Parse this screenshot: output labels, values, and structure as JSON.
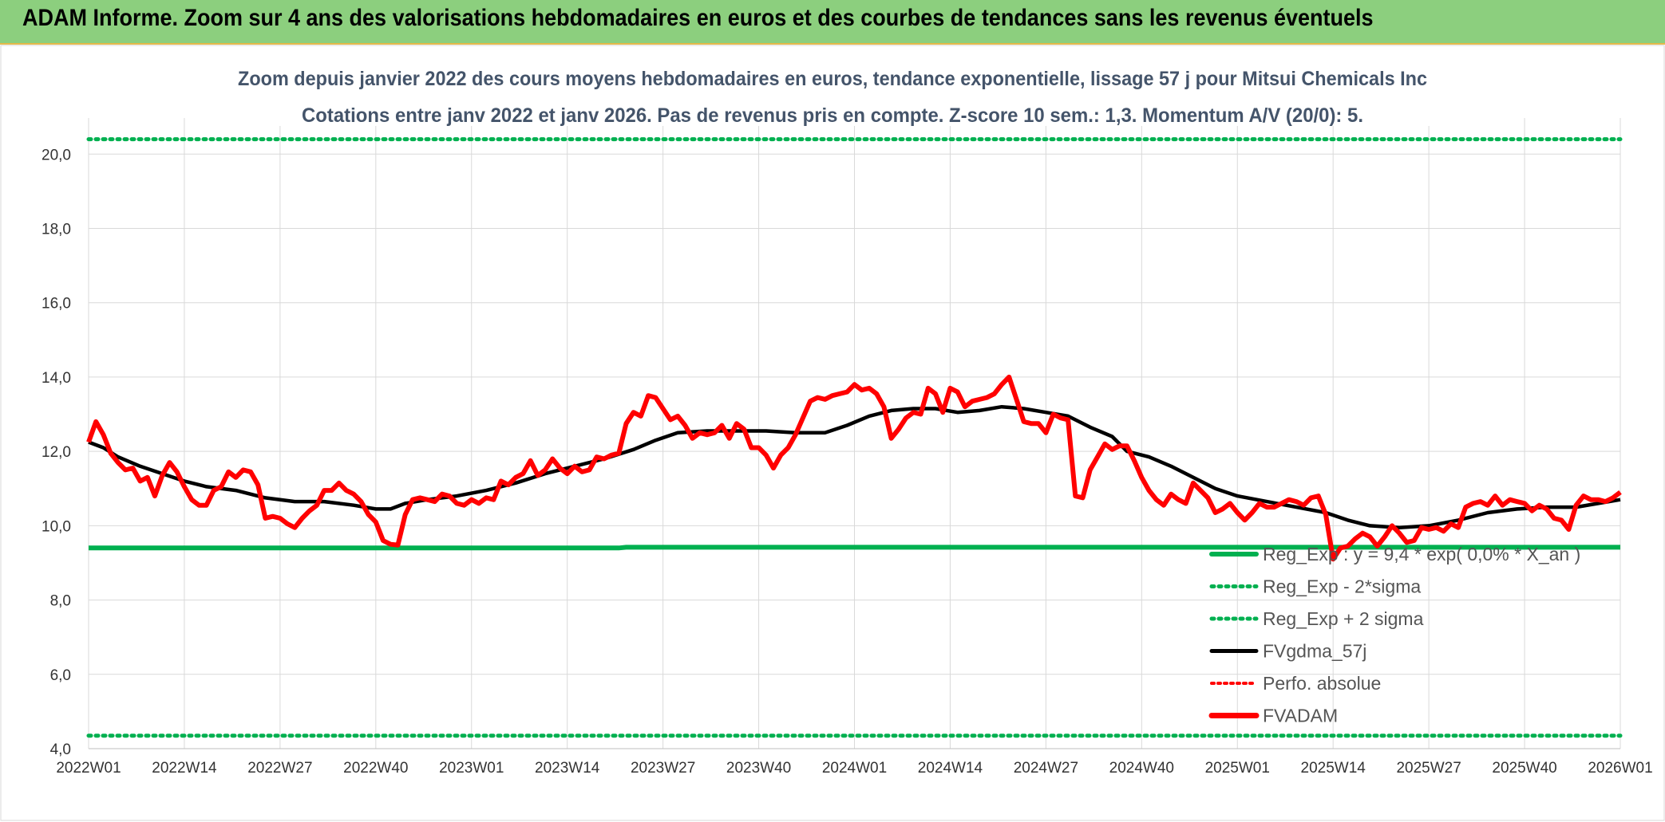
{
  "header": {
    "title": "ADAM Informe. Zoom sur 4 ans des valorisations hebdomadaires en euros et des courbes de tendances sans les revenus éventuels"
  },
  "colors": {
    "reg": "#00b050",
    "sigma": "#00b050",
    "fvgdma": "#000000",
    "perfo": "#ff0000",
    "fvadam": "#ff0000",
    "banner": "#8ccf7e"
  },
  "chart_data": {
    "type": "line",
    "title": "Zoom depuis janvier 2022 des cours moyens hebdomadaires en euros, tendance exponentielle, lissage 57 j pour Mitsui Chemicals Inc",
    "subtitle": "Cotations entre janv 2022 et janv 2026. Pas de revenus pris en compte. Z-score 10 sem.: 1,3. Momentum A/V (20/0): 5.",
    "ylim": [
      4,
      20.8
    ],
    "yticks": [
      "4,0",
      "6,0",
      "8,0",
      "10,0",
      "12,0",
      "14,0",
      "16,0",
      "18,0",
      "20,0"
    ],
    "xticks": [
      "2022W01",
      "2022W14",
      "2022W27",
      "2022W40",
      "2023W01",
      "2023W14",
      "2023W27",
      "2023W40",
      "2024W01",
      "2024W14",
      "2024W27",
      "2024W40",
      "2025W01",
      "2025W14",
      "2025W27",
      "2025W40",
      "2026W01"
    ],
    "legend": [
      {
        "key": "reg",
        "label": "Reg_Exp : y = 9,4 * exp( 0,0% *  X_an )",
        "style": "solid-green"
      },
      {
        "key": "minus2",
        "label": "Reg_Exp - 2*sigma",
        "style": "dotted-green"
      },
      {
        "key": "plus2",
        "label": "Reg_Exp + 2 sigma",
        "style": "dotted-green"
      },
      {
        "key": "fvgdma",
        "label": "FVgdma_57j",
        "style": "solid-black"
      },
      {
        "key": "perfo",
        "label": "Perfo. absolue",
        "style": "dotted-red"
      },
      {
        "key": "fvadam",
        "label": "FVADAM",
        "style": "solid-red"
      }
    ],
    "series": {
      "reg": [
        [
          0,
          9.4
        ],
        [
          72,
          9.4
        ],
        [
          73,
          9.42
        ],
        [
          208,
          9.42
        ]
      ],
      "sigma_upper": [
        [
          0,
          20.4
        ],
        [
          19,
          20.4
        ],
        [
          183,
          20.4
        ],
        [
          208,
          20.4
        ]
      ],
      "sigma_lower": [
        [
          0,
          4.35
        ],
        [
          208,
          4.35
        ]
      ],
      "fvgdma": [
        [
          0,
          12.25
        ],
        [
          2,
          12.1
        ],
        [
          4,
          11.85
        ],
        [
          7,
          11.6
        ],
        [
          10,
          11.4
        ],
        [
          13,
          11.2
        ],
        [
          16,
          11.05
        ],
        [
          20,
          10.95
        ],
        [
          24,
          10.75
        ],
        [
          28,
          10.65
        ],
        [
          32,
          10.65
        ],
        [
          36,
          10.55
        ],
        [
          39,
          10.45
        ],
        [
          41,
          10.45
        ],
        [
          43,
          10.6
        ],
        [
          46,
          10.7
        ],
        [
          50,
          10.8
        ],
        [
          54,
          10.95
        ],
        [
          58,
          11.15
        ],
        [
          62,
          11.4
        ],
        [
          66,
          11.6
        ],
        [
          70,
          11.8
        ],
        [
          74,
          12.05
        ],
        [
          77,
          12.3
        ],
        [
          80,
          12.5
        ],
        [
          84,
          12.55
        ],
        [
          88,
          12.55
        ],
        [
          92,
          12.55
        ],
        [
          96,
          12.5
        ],
        [
          100,
          12.5
        ],
        [
          103,
          12.7
        ],
        [
          106,
          12.95
        ],
        [
          109,
          13.1
        ],
        [
          112,
          13.15
        ],
        [
          115,
          13.15
        ],
        [
          118,
          13.05
        ],
        [
          121,
          13.1
        ],
        [
          124,
          13.2
        ],
        [
          127,
          13.15
        ],
        [
          130,
          13.05
        ],
        [
          133,
          12.95
        ],
        [
          136,
          12.65
        ],
        [
          139,
          12.4
        ],
        [
          141,
          12.0
        ],
        [
          144,
          11.85
        ],
        [
          147,
          11.6
        ],
        [
          150,
          11.3
        ],
        [
          153,
          11.0
        ],
        [
          156,
          10.8
        ],
        [
          160,
          10.65
        ],
        [
          164,
          10.5
        ],
        [
          168,
          10.35
        ],
        [
          171,
          10.15
        ],
        [
          174,
          10.0
        ],
        [
          178,
          9.95
        ],
        [
          182,
          10.0
        ],
        [
          186,
          10.15
        ],
        [
          190,
          10.35
        ],
        [
          194,
          10.45
        ],
        [
          198,
          10.5
        ],
        [
          202,
          10.5
        ],
        [
          205,
          10.6
        ],
        [
          208,
          10.7
        ]
      ],
      "fvadam": [
        [
          0,
          12.25
        ],
        [
          1,
          12.8
        ],
        [
          2,
          12.45
        ],
        [
          3,
          11.95
        ],
        [
          4,
          11.7
        ],
        [
          5,
          11.5
        ],
        [
          6,
          11.55
        ],
        [
          7,
          11.2
        ],
        [
          8,
          11.3
        ],
        [
          9,
          10.8
        ],
        [
          10,
          11.35
        ],
        [
          11,
          11.7
        ],
        [
          12,
          11.45
        ],
        [
          13,
          11.05
        ],
        [
          14,
          10.7
        ],
        [
          15,
          10.55
        ],
        [
          16,
          10.55
        ],
        [
          17,
          10.95
        ],
        [
          18,
          11.05
        ],
        [
          19,
          11.45
        ],
        [
          20,
          11.3
        ],
        [
          21,
          11.5
        ],
        [
          22,
          11.45
        ],
        [
          23,
          11.1
        ],
        [
          24,
          10.2
        ],
        [
          25,
          10.25
        ],
        [
          26,
          10.2
        ],
        [
          27,
          10.05
        ],
        [
          28,
          9.95
        ],
        [
          29,
          10.2
        ],
        [
          30,
          10.4
        ],
        [
          31,
          10.55
        ],
        [
          32,
          10.95
        ],
        [
          33,
          10.95
        ],
        [
          34,
          11.15
        ],
        [
          35,
          10.95
        ],
        [
          36,
          10.85
        ],
        [
          37,
          10.65
        ],
        [
          38,
          10.3
        ],
        [
          39,
          10.1
        ],
        [
          40,
          9.6
        ],
        [
          41,
          9.5
        ],
        [
          42,
          9.48
        ],
        [
          43,
          10.3
        ],
        [
          44,
          10.7
        ],
        [
          45,
          10.75
        ],
        [
          46,
          10.7
        ],
        [
          47,
          10.65
        ],
        [
          48,
          10.85
        ],
        [
          49,
          10.8
        ],
        [
          50,
          10.6
        ],
        [
          51,
          10.55
        ],
        [
          52,
          10.7
        ],
        [
          53,
          10.6
        ],
        [
          54,
          10.75
        ],
        [
          55,
          10.7
        ],
        [
          56,
          11.2
        ],
        [
          57,
          11.1
        ],
        [
          58,
          11.3
        ],
        [
          59,
          11.4
        ],
        [
          60,
          11.75
        ],
        [
          61,
          11.35
        ],
        [
          62,
          11.5
        ],
        [
          63,
          11.8
        ],
        [
          64,
          11.55
        ],
        [
          65,
          11.4
        ],
        [
          66,
          11.6
        ],
        [
          67,
          11.45
        ],
        [
          68,
          11.5
        ],
        [
          69,
          11.85
        ],
        [
          70,
          11.8
        ],
        [
          71,
          11.9
        ],
        [
          72,
          11.95
        ],
        [
          73,
          12.75
        ],
        [
          74,
          13.05
        ],
        [
          75,
          12.95
        ],
        [
          76,
          13.5
        ],
        [
          77,
          13.45
        ],
        [
          78,
          13.15
        ],
        [
          79,
          12.85
        ],
        [
          80,
          12.95
        ],
        [
          81,
          12.7
        ],
        [
          82,
          12.35
        ],
        [
          83,
          12.5
        ],
        [
          84,
          12.45
        ],
        [
          85,
          12.5
        ],
        [
          86,
          12.7
        ],
        [
          87,
          12.35
        ],
        [
          88,
          12.75
        ],
        [
          89,
          12.6
        ],
        [
          90,
          12.1
        ],
        [
          91,
          12.1
        ],
        [
          92,
          11.9
        ],
        [
          93,
          11.55
        ],
        [
          94,
          11.9
        ],
        [
          95,
          12.1
        ],
        [
          96,
          12.45
        ],
        [
          97,
          12.9
        ],
        [
          98,
          13.35
        ],
        [
          99,
          13.45
        ],
        [
          100,
          13.4
        ],
        [
          101,
          13.5
        ],
        [
          102,
          13.55
        ],
        [
          103,
          13.6
        ],
        [
          104,
          13.8
        ],
        [
          105,
          13.65
        ],
        [
          106,
          13.7
        ],
        [
          107,
          13.55
        ],
        [
          108,
          13.2
        ],
        [
          109,
          12.35
        ],
        [
          110,
          12.6
        ],
        [
          111,
          12.9
        ],
        [
          112,
          13.05
        ],
        [
          113,
          13.0
        ],
        [
          114,
          13.7
        ],
        [
          115,
          13.55
        ],
        [
          116,
          13.05
        ],
        [
          117,
          13.7
        ],
        [
          118,
          13.6
        ],
        [
          119,
          13.2
        ],
        [
          120,
          13.35
        ],
        [
          121,
          13.4
        ],
        [
          122,
          13.45
        ],
        [
          123,
          13.55
        ],
        [
          124,
          13.8
        ],
        [
          125,
          14.0
        ],
        [
          126,
          13.4
        ],
        [
          127,
          12.8
        ],
        [
          128,
          12.75
        ],
        [
          129,
          12.75
        ],
        [
          130,
          12.5
        ],
        [
          131,
          13.0
        ],
        [
          132,
          12.9
        ],
        [
          133,
          12.85
        ],
        [
          134,
          10.8
        ],
        [
          135,
          10.75
        ],
        [
          136,
          11.5
        ],
        [
          137,
          11.85
        ],
        [
          138,
          12.2
        ],
        [
          139,
          12.05
        ],
        [
          140,
          12.15
        ],
        [
          141,
          12.15
        ],
        [
          142,
          11.75
        ],
        [
          143,
          11.3
        ],
        [
          144,
          10.95
        ],
        [
          145,
          10.7
        ],
        [
          146,
          10.55
        ],
        [
          147,
          10.85
        ],
        [
          148,
          10.7
        ],
        [
          149,
          10.6
        ],
        [
          150,
          11.15
        ],
        [
          151,
          10.95
        ],
        [
          152,
          10.75
        ],
        [
          153,
          10.35
        ],
        [
          154,
          10.45
        ],
        [
          155,
          10.6
        ],
        [
          156,
          10.35
        ],
        [
          157,
          10.15
        ],
        [
          158,
          10.35
        ],
        [
          159,
          10.6
        ],
        [
          160,
          10.5
        ],
        [
          161,
          10.5
        ],
        [
          162,
          10.6
        ],
        [
          163,
          10.7
        ],
        [
          164,
          10.65
        ],
        [
          165,
          10.55
        ],
        [
          166,
          10.75
        ],
        [
          167,
          10.8
        ],
        [
          168,
          10.3
        ],
        [
          169,
          9.1
        ],
        [
          170,
          9.4
        ],
        [
          171,
          9.45
        ],
        [
          172,
          9.65
        ],
        [
          173,
          9.8
        ],
        [
          174,
          9.7
        ],
        [
          175,
          9.45
        ],
        [
          176,
          9.7
        ],
        [
          177,
          10.0
        ],
        [
          178,
          9.8
        ],
        [
          179,
          9.55
        ],
        [
          180,
          9.6
        ],
        [
          181,
          9.95
        ],
        [
          182,
          9.9
        ],
        [
          183,
          9.95
        ],
        [
          184,
          9.85
        ],
        [
          185,
          10.05
        ],
        [
          186,
          9.95
        ],
        [
          187,
          10.5
        ],
        [
          188,
          10.6
        ],
        [
          189,
          10.65
        ],
        [
          190,
          10.55
        ],
        [
          191,
          10.8
        ],
        [
          192,
          10.55
        ],
        [
          193,
          10.7
        ],
        [
          194,
          10.65
        ],
        [
          195,
          10.6
        ],
        [
          196,
          10.4
        ],
        [
          197,
          10.55
        ],
        [
          198,
          10.45
        ],
        [
          199,
          10.2
        ],
        [
          200,
          10.15
        ],
        [
          201,
          9.9
        ],
        [
          202,
          10.55
        ],
        [
          203,
          10.8
        ],
        [
          204,
          10.7
        ],
        [
          205,
          10.7
        ],
        [
          206,
          10.65
        ],
        [
          207,
          10.75
        ],
        [
          208,
          10.9
        ]
      ]
    }
  }
}
